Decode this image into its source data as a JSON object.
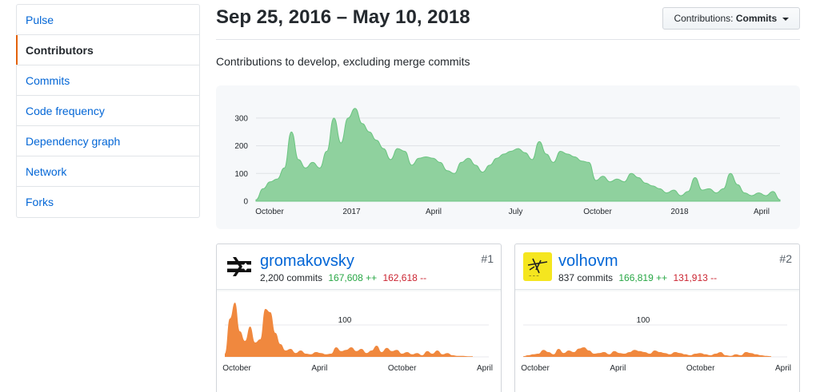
{
  "sidebar": {
    "items": [
      {
        "label": "Pulse",
        "selected": false
      },
      {
        "label": "Contributors",
        "selected": true
      },
      {
        "label": "Commits",
        "selected": false
      },
      {
        "label": "Code frequency",
        "selected": false
      },
      {
        "label": "Dependency graph",
        "selected": false
      },
      {
        "label": "Network",
        "selected": false
      },
      {
        "label": "Forks",
        "selected": false
      }
    ]
  },
  "header": {
    "date_range": "Sep 25, 2016 – May 10, 2018",
    "select_prefix": "Contributions:",
    "select_value": "Commits",
    "subtitle": "Contributions to develop, excluding merge commits"
  },
  "colors": {
    "main_fill": "#8fd19e",
    "main_stroke": "#6cc582",
    "contributor_fill": "#f0883e",
    "link": "#0366d6",
    "additions": "#28a745",
    "deletions": "#cb2431"
  },
  "chart_data": [
    {
      "type": "area",
      "title": "",
      "ylim": [
        0,
        340
      ],
      "y_ticks": [
        "0",
        "100",
        "200",
        "300"
      ],
      "x_ticks": [
        "October",
        "2017",
        "April",
        "July",
        "October",
        "2018",
        "April"
      ],
      "grid": true,
      "values": [
        5,
        45,
        70,
        80,
        120,
        250,
        150,
        120,
        140,
        120,
        180,
        300,
        210,
        300,
        335,
        280,
        250,
        220,
        190,
        150,
        190,
        180,
        130,
        155,
        160,
        155,
        140,
        110,
        100,
        140,
        155,
        130,
        105,
        130,
        155,
        170,
        180,
        190,
        175,
        150,
        215,
        170,
        140,
        180,
        170,
        160,
        145,
        140,
        75,
        90,
        70,
        80,
        70,
        100,
        85,
        65,
        55,
        45,
        30,
        40,
        20,
        35,
        85,
        40,
        45,
        30,
        45,
        100,
        60,
        30,
        20,
        30,
        20,
        35,
        5
      ]
    },
    {
      "type": "area",
      "title": "",
      "ylim": [
        0,
        200
      ],
      "y_ticks": [
        "100"
      ],
      "x_ticks": [
        "October",
        "April",
        "October",
        "April"
      ],
      "values": [
        10,
        120,
        170,
        80,
        50,
        95,
        45,
        55,
        150,
        140,
        75,
        40,
        20,
        25,
        12,
        20,
        10,
        8,
        15,
        12,
        8,
        10,
        30,
        18,
        22,
        30,
        18,
        25,
        12,
        20,
        35,
        15,
        28,
        18,
        22,
        10,
        15,
        8,
        12,
        5,
        18,
        10,
        20,
        8,
        12,
        5,
        3,
        3,
        2,
        2
      ]
    },
    {
      "type": "area",
      "title": "",
      "ylim": [
        0,
        200
      ],
      "y_ticks": [
        "100"
      ],
      "x_ticks": [
        "October",
        "April",
        "October",
        "April"
      ],
      "values": [
        2,
        5,
        8,
        10,
        22,
        15,
        8,
        25,
        12,
        20,
        15,
        26,
        30,
        20,
        10,
        12,
        15,
        8,
        18,
        12,
        10,
        15,
        22,
        18,
        15,
        10,
        20,
        15,
        12,
        8,
        15,
        12,
        8,
        5,
        10,
        12,
        8,
        5,
        10,
        15,
        5,
        3,
        8,
        5,
        15,
        12,
        8,
        5,
        3,
        2
      ]
    }
  ],
  "contributors": [
    {
      "login": "gromakovsky",
      "commits": "2,200 commits",
      "additions": "167,608 ++",
      "deletions": "162,618 --",
      "rank": "#1",
      "avatar": "split-arrows-logo"
    },
    {
      "login": "volhovm",
      "commits": "837 commits",
      "additions": "166,819 ++",
      "deletions": "131,913 --",
      "rank": "#2",
      "avatar": "yellow-sketch-avatar"
    }
  ]
}
